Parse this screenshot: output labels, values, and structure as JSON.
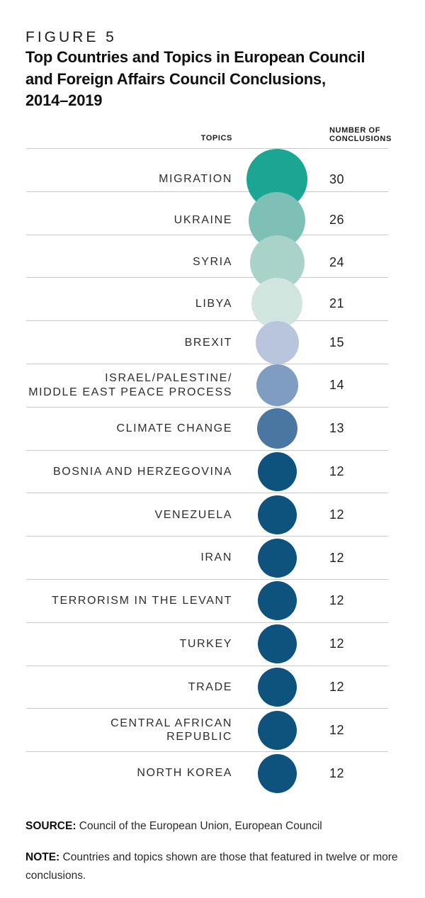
{
  "figure": {
    "kicker": "FIGURE 5",
    "title_lines": [
      "Top Countries and Topics in European Council",
      "and Foreign Affairs Council Conclusions,",
      "2014–2019"
    ]
  },
  "columns": {
    "topics_header": "TOPICS",
    "number_header_line1": "NUMBER OF",
    "number_header_line2": "CONCLUSIONS"
  },
  "chart_data": {
    "type": "bubble",
    "title": "Top Countries and Topics in European Council and Foreign Affairs Council Conclusions, 2014–2019",
    "categories": [
      "MIGRATION",
      "UKRAINE",
      "SYRIA",
      "LIBYA",
      "BREXIT",
      "ISRAEL/PALESTINE/MIDDLE EAST PEACE PROCESS",
      "CLIMATE CHANGE",
      "BOSNIA AND HERZEGOVINA",
      "VENEZUELA",
      "IRAN",
      "TERRORISM IN THE LEVANT",
      "TURKEY",
      "TRADE",
      "CENTRAL AFRICAN REPUBLIC",
      "NORTH KOREA"
    ],
    "values": [
      30,
      26,
      24,
      21,
      15,
      14,
      13,
      12,
      12,
      12,
      12,
      12,
      12,
      12,
      12
    ],
    "value_label": "NUMBER OF CONCLUSIONS",
    "category_label": "TOPICS",
    "bubble_area_proportional_to_value": true,
    "legend_position": "none",
    "grid": "horizontal-rules-between-rows"
  },
  "rows": [
    {
      "label": "MIGRATION",
      "label2": "",
      "value": "30",
      "color": "#1aa693",
      "diameter": 86
    },
    {
      "label": "UKRAINE",
      "label2": "",
      "value": "26",
      "color": "#7fc0b6",
      "diameter": 80
    },
    {
      "label": "SYRIA",
      "label2": "",
      "value": "24",
      "color": "#a9d3c9",
      "diameter": 77
    },
    {
      "label": "LIBYA",
      "label2": "",
      "value": "21",
      "color": "#cfe5dd",
      "diameter": 72
    },
    {
      "label": "BREXIT",
      "label2": "",
      "value": "15",
      "color": "#b9c5dc",
      "diameter": 61
    },
    {
      "label": "ISRAEL/PALESTINE/",
      "label2": "MIDDLE EAST PEACE PROCESS",
      "value": "14",
      "color": "#7e9dc0",
      "diameter": 59
    },
    {
      "label": "CLIMATE CHANGE",
      "label2": "",
      "value": "13",
      "color": "#4a77a2",
      "diameter": 57
    },
    {
      "label": "BOSNIA AND HERZEGOVINA",
      "label2": "",
      "value": "12",
      "color": "#0e527e",
      "diameter": 55
    },
    {
      "label": "VENEZUELA",
      "label2": "",
      "value": "12",
      "color": "#0e527e",
      "diameter": 55
    },
    {
      "label": "IRAN",
      "label2": "",
      "value": "12",
      "color": "#0e527e",
      "diameter": 55
    },
    {
      "label": "TERRORISM IN THE LEVANT",
      "label2": "",
      "value": "12",
      "color": "#0e527e",
      "diameter": 55
    },
    {
      "label": "TURKEY",
      "label2": "",
      "value": "12",
      "color": "#0e527e",
      "diameter": 55
    },
    {
      "label": "TRADE",
      "label2": "",
      "value": "12",
      "color": "#0e527e",
      "diameter": 55
    },
    {
      "label": "CENTRAL AFRICAN",
      "label2": "REPUBLIC",
      "value": "12",
      "color": "#0e527e",
      "diameter": 55
    },
    {
      "label": "NORTH KOREA",
      "label2": "",
      "value": "12",
      "color": "#0e527e",
      "diameter": 55
    }
  ],
  "footer": {
    "source_label": "SOURCE:",
    "source_text": " Council of the European Union, European Council",
    "note_label": "NOTE:",
    "note_text": " Countries and topics shown are those that featured in twelve or more conclusions."
  }
}
